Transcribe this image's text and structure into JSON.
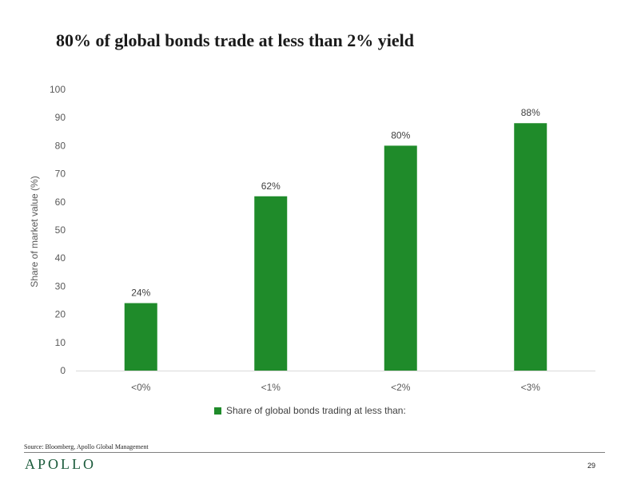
{
  "slide": {
    "title": "80% of global bonds trade at less than 2% yield",
    "source": "Source: Bloomberg, Apollo Global Management",
    "brand": "APOLLO",
    "page_number": "29"
  },
  "colors": {
    "bar": "#1f8b2a",
    "brand": "#1a5a3a",
    "axis": "#d9d9d9"
  },
  "chart_data": {
    "type": "bar",
    "categories": [
      "<0%",
      "<1%",
      "<2%",
      "<3%"
    ],
    "series": [
      {
        "name": "Share of global bonds trading at less than:",
        "values": [
          24,
          62,
          80,
          88
        ],
        "data_labels": [
          "24%",
          "62%",
          "80%",
          "88%"
        ]
      }
    ],
    "title": "",
    "xlabel": "",
    "ylabel": "Share of market value (%)",
    "ylim": [
      0,
      100
    ],
    "yticks": [
      0,
      10,
      20,
      30,
      40,
      50,
      60,
      70,
      80,
      90,
      100
    ],
    "grid": false,
    "legend": "bottom"
  }
}
